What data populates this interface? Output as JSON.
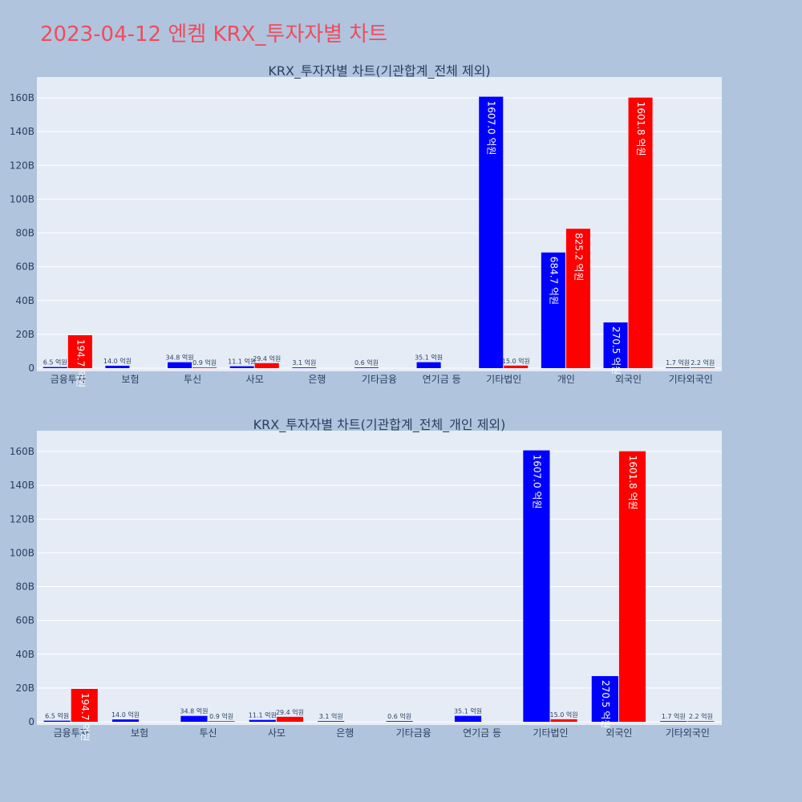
{
  "title": "2023-04-12 엔켐 KRX_투자자별 차트",
  "colors": {
    "buy": "#0000ff",
    "sell": "#ff0000",
    "plot_bg": "#e5ecf6",
    "page_bg": "#b0c4de",
    "grid": "#ffffff",
    "title": "#ef4c5e"
  },
  "chart_data": [
    {
      "type": "bar",
      "title": "KRX_투자자별 차트(기관합계_전체 제외)",
      "categories": [
        "금융투자",
        "보험",
        "투신",
        "사모",
        "은행",
        "기타금융",
        "연기금 등",
        "기타법인",
        "개인",
        "외국인",
        "기타외국인"
      ],
      "ylim": [
        0,
        170
      ],
      "yticks": [
        0,
        20,
        40,
        60,
        80,
        100,
        120,
        140,
        160
      ],
      "ytick_labels": [
        "0",
        "20B",
        "40B",
        "60B",
        "80B",
        "100B",
        "120B",
        "140B",
        "160B"
      ],
      "grid": true,
      "series": [
        {
          "color": "#0000ff",
          "values": [
            0.65,
            1.4,
            3.48,
            1.11,
            0.31,
            0.06,
            3.51,
            160.7,
            68.47,
            27.05,
            0.17
          ],
          "labels": [
            "6.5 억원",
            "14.0 억원",
            "34.8 억원",
            "11.1 억원",
            "3.1 억원",
            "0.6 억원",
            "35.1 억원",
            "1607.0 억원",
            "684.7 억원",
            "270.5 억원",
            "1.7 억원"
          ]
        },
        {
          "color": "#ff0000",
          "values": [
            19.47,
            null,
            0.09,
            2.94,
            null,
            null,
            null,
            1.5,
            82.52,
            160.18,
            0.22
          ],
          "labels": [
            "194.7 억원",
            "",
            "0.9 억원",
            "29.4 억원",
            "",
            "",
            "",
            "15.0 억원",
            "825.2 억원",
            "1601.8 억원",
            "2.2 억원"
          ]
        }
      ]
    },
    {
      "type": "bar",
      "title": "KRX_투자자별 차트(기관합계_전체_개인 제외)",
      "categories": [
        "금융투자",
        "보험",
        "투신",
        "사모",
        "은행",
        "기타금융",
        "연기금 등",
        "기타법인",
        "외국인",
        "기타외국인"
      ],
      "ylim": [
        0,
        170
      ],
      "yticks": [
        0,
        20,
        40,
        60,
        80,
        100,
        120,
        140,
        160
      ],
      "ytick_labels": [
        "0",
        "20B",
        "40B",
        "60B",
        "80B",
        "100B",
        "120B",
        "140B",
        "160B"
      ],
      "grid": true,
      "series": [
        {
          "color": "#0000ff",
          "values": [
            0.65,
            1.4,
            3.48,
            1.11,
            0.31,
            0.06,
            3.51,
            160.7,
            27.05,
            0.17
          ],
          "labels": [
            "6.5 억원",
            "14.0 억원",
            "34.8 억원",
            "11.1 억원",
            "3.1 억원",
            "0.6 억원",
            "35.1 억원",
            "1607.0 억원",
            "270.5 억원",
            "1.7 억원"
          ]
        },
        {
          "color": "#ff0000",
          "values": [
            19.47,
            null,
            0.09,
            2.94,
            null,
            null,
            null,
            1.5,
            160.18,
            0.22
          ],
          "labels": [
            "194.7 억원",
            "",
            "0.9 억원",
            "29.4 억원",
            "",
            "",
            "",
            "15.0 억원",
            "1601.8 억원",
            "2.2 억원"
          ]
        }
      ]
    }
  ]
}
